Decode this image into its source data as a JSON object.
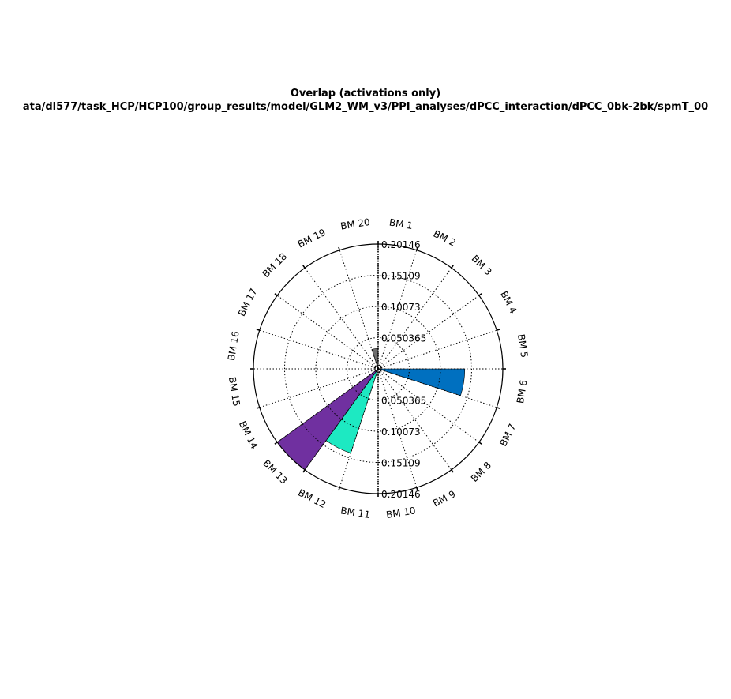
{
  "chart_data": {
    "type": "polar-bar",
    "title": "Overlap (activations only)",
    "subtitle": "ata/dl577/task_HCP/HCP100/group_results/model/GLM2_WM_v3/PPI_analyses/dPCC_interaction/dPCC_0bk-2bk/spmT_00",
    "categories": [
      "BM 1",
      "BM 2",
      "BM 3",
      "BM 4",
      "BM 5",
      "BM 6",
      "BM 7",
      "BM 8",
      "BM 9",
      "BM 10",
      "BM 11",
      "BM 12",
      "BM 13",
      "BM 14",
      "BM 15",
      "BM 16",
      "BM 17",
      "BM 18",
      "BM 19",
      "BM 20"
    ],
    "values": [
      0,
      0,
      0,
      0,
      0,
      0.14,
      0,
      0,
      0,
      0,
      0,
      0.143,
      0.204,
      0,
      0,
      0,
      0,
      0,
      0,
      0.033
    ],
    "colors": [
      "#4d4d4d",
      "#4d4d4d",
      "#4d4d4d",
      "#4d4d4d",
      "#4d4d4d",
      "#0070c0",
      "#4d4d4d",
      "#4d4d4d",
      "#4d4d4d",
      "#4d4d4d",
      "#4d4d4d",
      "#1de9c2",
      "#7030a0",
      "#4d4d4d",
      "#4d4d4d",
      "#4d4d4d",
      "#4d4d4d",
      "#4d4d4d",
      "#4d4d4d",
      "#6d6d6d"
    ],
    "radial_ticks": [
      "0.050365",
      "0.10073",
      "0.15109",
      "0.20146"
    ],
    "rmax": 0.20146,
    "direction": "clockwise",
    "zero_location": "top",
    "grid": true
  }
}
